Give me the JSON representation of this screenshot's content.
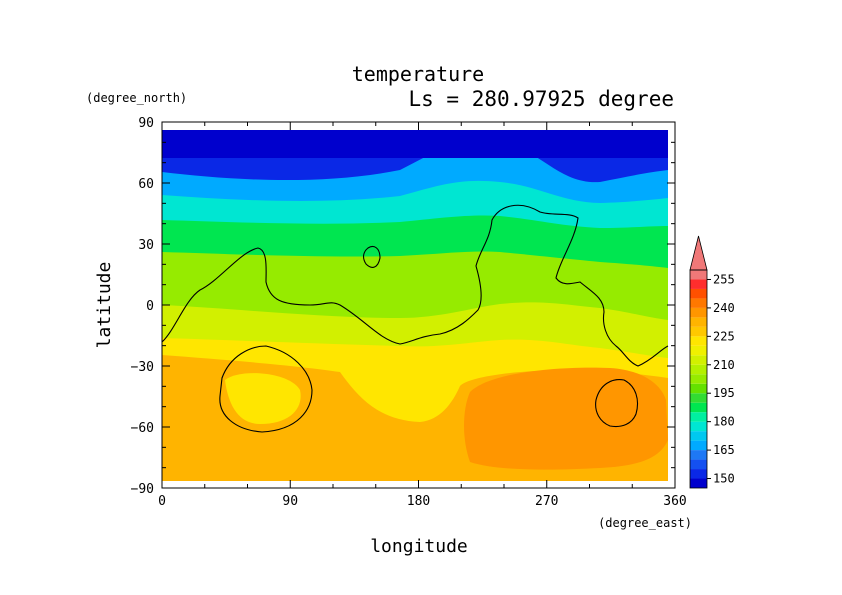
{
  "chart_data": {
    "type": "heatmap",
    "title": "temperature",
    "subtitle": "Ls = 280.97925 degree",
    "xlabel": "longitude",
    "ylabel": "latitude",
    "x_units": "(degree_east)",
    "y_units": "(degree_north)",
    "xlim": [
      0,
      360
    ],
    "ylim": [
      -90,
      90
    ],
    "x_ticks": [
      "0",
      "90",
      "180",
      "270",
      "360"
    ],
    "y_ticks": [
      "90",
      "60",
      "30",
      "0",
      "−30",
      "−60",
      "−90"
    ],
    "x_tick_values": [
      0,
      90,
      180,
      270,
      360
    ],
    "y_tick_values": [
      90,
      60,
      30,
      0,
      -30,
      -60,
      -90
    ],
    "data_lat_range": [
      -87,
      87
    ],
    "colorbar": {
      "labels": [
        "255",
        "240",
        "225",
        "210",
        "195",
        "180",
        "165",
        "150"
      ],
      "levels": [
        145,
        150,
        155,
        160,
        165,
        170,
        175,
        180,
        185,
        190,
        195,
        200,
        205,
        210,
        215,
        220,
        225,
        230,
        235,
        240,
        245,
        250,
        255,
        260
      ],
      "colors": [
        "#0000cd",
        "#0a28e6",
        "#1450f0",
        "#1e78f5",
        "#00aaff",
        "#00c8f0",
        "#00e6d2",
        "#00f0a0",
        "#00e650",
        "#32dc32",
        "#64e100",
        "#96eb00",
        "#b4f000",
        "#d2f000",
        "#f0f000",
        "#ffe600",
        "#ffc800",
        "#ffb400",
        "#ff9600",
        "#ff7800",
        "#ff5000",
        "#ff2d2d",
        "#f07878"
      ]
    }
  }
}
